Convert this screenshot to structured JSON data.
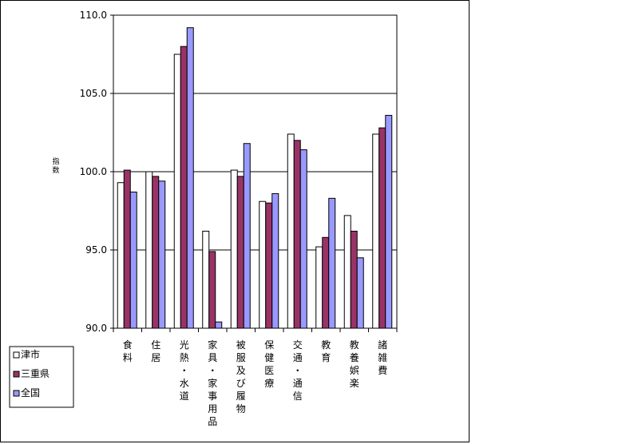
{
  "chart_data": {
    "type": "bar",
    "ylabel": "指数",
    "ylim": [
      90,
      110
    ],
    "yticks": [
      "90.0",
      "95.0",
      "100.0",
      "105.0",
      "110.0"
    ],
    "grid": true,
    "legend_position": "bottom-left",
    "categories": [
      "食料",
      "住居",
      "光熱・水道",
      "家具・家事用品",
      "被服及び履物",
      "保健医療",
      "交通・通信",
      "教育",
      "教養娯楽",
      "諸雑費"
    ],
    "series": [
      {
        "name": "津市",
        "color": "#ffffff",
        "values": [
          99.3,
          100.0,
          107.5,
          96.2,
          100.1,
          98.1,
          102.4,
          95.2,
          97.2,
          102.4
        ]
      },
      {
        "name": "三重県",
        "color": "#993366",
        "values": [
          100.1,
          99.7,
          108.0,
          94.9,
          99.7,
          98.0,
          102.0,
          95.8,
          96.2,
          102.8
        ]
      },
      {
        "name": "全国",
        "color": "#9999ff",
        "values": [
          98.7,
          99.4,
          109.2,
          90.4,
          101.8,
          98.6,
          101.4,
          98.3,
          94.5,
          103.6
        ]
      }
    ]
  }
}
